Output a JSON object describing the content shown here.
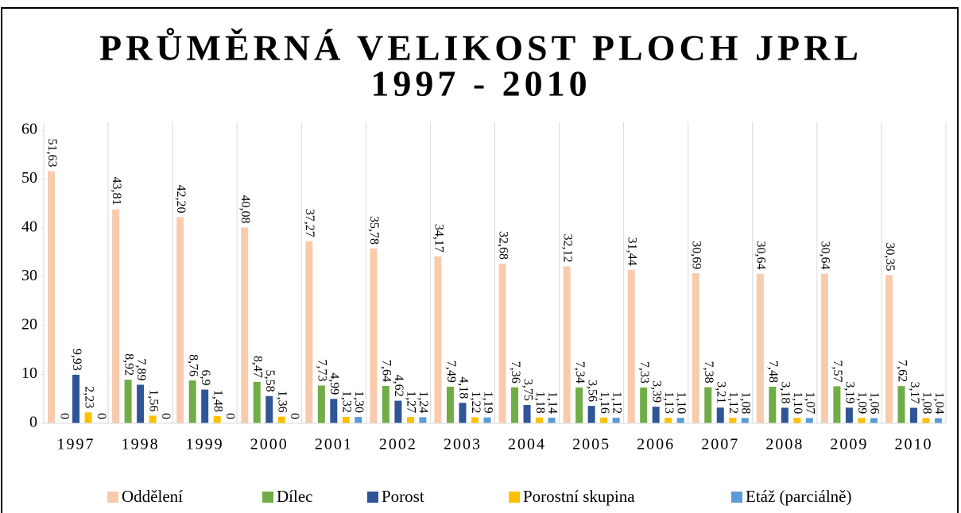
{
  "chart_data": {
    "type": "bar",
    "title": "PRŮMĚRNÁ VELIKOST PLOCH JPRL",
    "subtitle": "1997 - 2010",
    "categories": [
      "1997",
      "1998",
      "1999",
      "2000",
      "2001",
      "2002",
      "2003",
      "2004",
      "2005",
      "2006",
      "2007",
      "2008",
      "2009",
      "2010"
    ],
    "series": [
      {
        "name": "Oddělení",
        "color": "#f8cbad",
        "values": [
          51.63,
          43.81,
          42.2,
          40.08,
          37.27,
          35.78,
          34.17,
          32.68,
          32.12,
          31.44,
          30.69,
          30.64,
          30.64,
          30.35
        ],
        "value_labels": [
          "51,63",
          "43,81",
          "42,20",
          "40,08",
          "37,27",
          "35,78",
          "34,17",
          "32,68",
          "32,12",
          "31,44",
          "30,69",
          "30,64",
          "30,64",
          "30,35"
        ]
      },
      {
        "name": "Dílec",
        "color": "#70ad47",
        "values": [
          0,
          8.92,
          8.76,
          8.47,
          7.73,
          7.64,
          7.49,
          7.36,
          7.34,
          7.33,
          7.38,
          7.48,
          7.57,
          7.62
        ],
        "value_labels": [
          "0",
          "8,92",
          "8,76",
          "8,47",
          "7,73",
          "7,64",
          "7,49",
          "7,36",
          "7,34",
          "7,33",
          "7,38",
          "7,48",
          "7,57",
          "7,62"
        ]
      },
      {
        "name": "Porost",
        "color": "#2f5597",
        "values": [
          9.93,
          7.89,
          6.9,
          5.58,
          4.99,
          4.62,
          4.18,
          3.75,
          3.56,
          3.39,
          3.21,
          3.18,
          3.19,
          3.17
        ],
        "value_labels": [
          "9,93",
          "7,89",
          "6,9",
          "5,58",
          "4,99",
          "4,62",
          "4,18",
          "3,75",
          "3,56",
          "3,39",
          "3,21",
          "3,18",
          "3,19",
          "3,17"
        ]
      },
      {
        "name": "Porostní skupina",
        "color": "#ffc000",
        "values": [
          2.23,
          1.56,
          1.48,
          1.36,
          1.32,
          1.27,
          1.22,
          1.18,
          1.16,
          1.13,
          1.12,
          1.1,
          1.09,
          1.08
        ],
        "value_labels": [
          "2,23",
          "1,56",
          "1,48",
          "1,36",
          "1,32",
          "1,27",
          "1,22",
          "1,18",
          "1,16",
          "1,13",
          "1,12",
          "1,10",
          "1,09",
          "1,08"
        ]
      },
      {
        "name": "Etáž (parciálně)",
        "color": "#5b9bd5",
        "values": [
          0,
          0,
          0,
          0,
          1.3,
          1.24,
          1.19,
          1.14,
          1.12,
          1.1,
          1.08,
          1.07,
          1.06,
          1.04
        ],
        "value_labels": [
          "0",
          "0",
          "0",
          "0",
          "1,30",
          "1,24",
          "1,19",
          "1,14",
          "1,12",
          "1,10",
          "1,08",
          "1,07",
          "1,06",
          "1,04"
        ]
      }
    ],
    "ylim": [
      0,
      60
    ],
    "yticks": [
      0,
      10,
      20,
      30,
      40,
      50,
      60
    ],
    "legend": "bottom"
  }
}
